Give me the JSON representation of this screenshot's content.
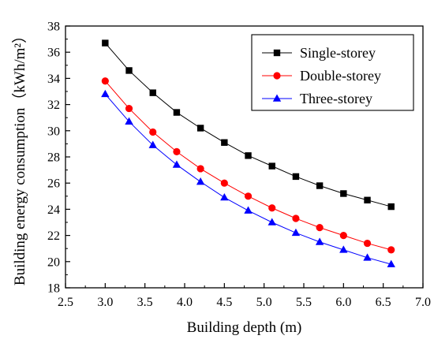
{
  "chart_data": {
    "type": "line",
    "xlabel": "Building depth (m)",
    "ylabel": "Building energy consumption（kWh/m²）",
    "xlim": [
      2.5,
      7.0
    ],
    "ylim": [
      18,
      38
    ],
    "xticks": [
      "2.5",
      "3.0",
      "3.5",
      "4.0",
      "4.5",
      "5.0",
      "5.5",
      "6.0",
      "6.5",
      "7.0"
    ],
    "yticks": [
      "18",
      "20",
      "22",
      "24",
      "26",
      "28",
      "30",
      "32",
      "34",
      "36",
      "38"
    ],
    "grid": false,
    "legend_position": "top-right",
    "x": [
      3.0,
      3.3,
      3.6,
      3.9,
      4.2,
      4.5,
      4.8,
      5.1,
      5.4,
      5.7,
      6.0,
      6.3,
      6.6
    ],
    "series": [
      {
        "name": "Single-storey",
        "color": "#000000",
        "marker": "square",
        "values": [
          36.7,
          34.6,
          32.9,
          31.4,
          30.2,
          29.1,
          28.1,
          27.3,
          26.5,
          25.8,
          25.2,
          24.7,
          24.2
        ]
      },
      {
        "name": "Double-storey",
        "color": "#ff0000",
        "marker": "circle",
        "values": [
          33.8,
          31.7,
          29.9,
          28.4,
          27.1,
          26.0,
          25.0,
          24.1,
          23.3,
          22.6,
          22.0,
          21.4,
          20.9
        ]
      },
      {
        "name": "Three-storey",
        "color": "#0000ff",
        "marker": "triangle",
        "values": [
          32.8,
          30.7,
          28.9,
          27.4,
          26.1,
          24.9,
          23.9,
          23.0,
          22.2,
          21.5,
          20.9,
          20.3,
          19.8
        ]
      }
    ]
  }
}
